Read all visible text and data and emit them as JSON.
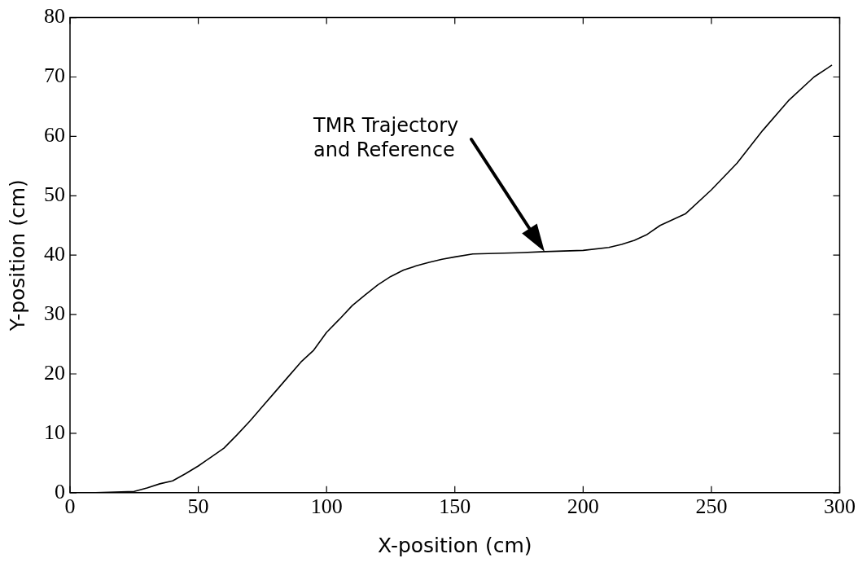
{
  "chart_data": {
    "type": "line",
    "xlabel": "X-position (cm)",
    "ylabel": "Y-position (cm)",
    "xlim": [
      0,
      300
    ],
    "xticks": [
      0,
      50,
      100,
      150,
      200,
      250,
      300
    ],
    "ylim": [
      0,
      80
    ],
    "yticks": [
      0,
      10,
      20,
      30,
      40,
      50,
      60,
      70,
      80
    ],
    "grid": false,
    "legend": false,
    "marker": "none",
    "line_style": "solid",
    "annotations": [
      "TMR Trajectory\nand Reference"
    ],
    "series": [
      {
        "color": "#000000",
        "x": [
          10,
          25,
          30,
          35,
          40,
          45,
          50,
          55,
          60,
          65,
          70,
          75,
          80,
          85,
          90,
          95,
          100,
          105,
          110,
          115,
          120,
          125,
          130,
          135,
          140,
          145,
          150,
          157,
          175,
          185,
          200,
          210,
          215,
          220,
          225,
          230,
          240,
          250,
          260,
          270,
          280,
          290,
          297
        ],
        "values": [
          0,
          0.2,
          0.8,
          1.5,
          2,
          3.2,
          4.5,
          6,
          7.5,
          9.7,
          12,
          14.5,
          17,
          19.5,
          22,
          24,
          27,
          29.2,
          31.5,
          33.3,
          35,
          36.4,
          37.5,
          38.2,
          38.8,
          39.3,
          39.7,
          40.2,
          40.4,
          40.6,
          40.8,
          41.3,
          41.8,
          42.5,
          43.5,
          45,
          47,
          51,
          55.5,
          61,
          66,
          70,
          72
        ]
      }
    ]
  }
}
